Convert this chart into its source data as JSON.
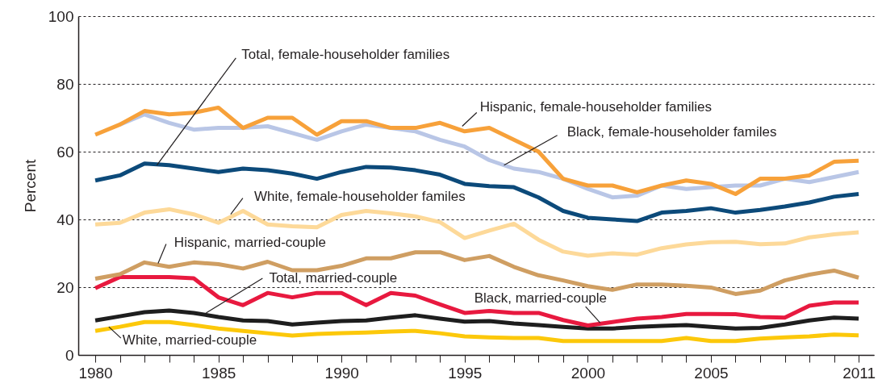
{
  "chart_data": {
    "type": "line",
    "ylabel": "Percent",
    "x": [
      1980,
      1981,
      1982,
      1983,
      1984,
      1985,
      1986,
      1987,
      1988,
      1989,
      1990,
      1991,
      1992,
      1993,
      1994,
      1995,
      1996,
      1997,
      1998,
      1999,
      2000,
      2001,
      2002,
      2003,
      2004,
      2005,
      2006,
      2007,
      2008,
      2009,
      2010,
      2011
    ],
    "xlim": [
      1979.31,
      2011.62
    ],
    "xticks": [
      1980,
      {
        "value": 1981,
        "label": null
      },
      {
        "value": 1982,
        "label": null
      },
      {
        "value": 1983,
        "label": null
      },
      {
        "value": 1984,
        "label": null
      },
      1985,
      {
        "value": 1986,
        "label": null
      },
      {
        "value": 1987,
        "label": null
      },
      {
        "value": 1988,
        "label": null
      },
      {
        "value": 1989,
        "label": null
      },
      1990,
      {
        "value": 1991,
        "label": null
      },
      {
        "value": 1992,
        "label": null
      },
      {
        "value": 1993,
        "label": null
      },
      {
        "value": 1994,
        "label": null
      },
      1995,
      {
        "value": 1996,
        "label": null
      },
      {
        "value": 1997,
        "label": null
      },
      {
        "value": 1998,
        "label": null
      },
      {
        "value": 1999,
        "label": null
      },
      2000,
      {
        "value": 2001,
        "label": null
      },
      {
        "value": 2002,
        "label": null
      },
      {
        "value": 2003,
        "label": null
      },
      {
        "value": 2004,
        "label": null
      },
      2005,
      {
        "value": 2006,
        "label": null
      },
      {
        "value": 2007,
        "label": null
      },
      {
        "value": 2008,
        "label": null
      },
      {
        "value": 2009,
        "label": null
      },
      {
        "value": 2010,
        "label": null
      },
      2011
    ],
    "ylim": [
      0,
      100
    ],
    "yticks": [
      0,
      20,
      40,
      60,
      80,
      100
    ],
    "grid": "y",
    "line_style": "solid",
    "series": [
      {
        "color": "#fcc80a",
        "values": [
          7.1,
          8.3,
          9.7,
          9.7,
          8.8,
          7.8,
          7.1,
          6.4,
          5.7,
          6.2,
          6.4,
          6.6,
          6.9,
          7.1,
          6.4,
          5.5,
          5.2,
          5,
          5,
          4.1,
          4.1,
          4.1,
          4.1,
          4.1,
          5,
          4.1,
          4.1,
          4.8,
          5.2,
          5.5,
          6,
          5.8
        ]
      },
      {
        "color": "#1e1e1e",
        "values": [
          10.2,
          11.4,
          12.6,
          13.1,
          12.4,
          11.2,
          10.2,
          10,
          9,
          9.5,
          10,
          10.2,
          11,
          11.7,
          10.7,
          9.8,
          10,
          9.3,
          8.8,
          8.3,
          7.8,
          7.8,
          8.3,
          8.6,
          8.8,
          8.3,
          7.8,
          8,
          9,
          10.2,
          11,
          10.7
        ]
      },
      {
        "color": "#e8193f",
        "values": [
          19.7,
          23,
          23,
          23,
          22.6,
          17,
          14.7,
          18.3,
          17,
          18.3,
          18.3,
          14.7,
          18.3,
          17.5,
          14.9,
          12.4,
          13,
          12.4,
          12.4,
          10.3,
          8.7,
          9.7,
          10.7,
          11.2,
          12.1,
          12.1,
          12,
          11.2,
          11,
          14.5,
          15.5,
          15.5
        ]
      },
      {
        "color": "#cf9e62",
        "values": [
          22.5,
          23.8,
          27.3,
          26,
          27.3,
          26.8,
          25.5,
          27.5,
          25,
          25,
          26.3,
          28.5,
          28.5,
          30.3,
          30.3,
          28,
          29.2,
          26,
          23.5,
          22,
          20.3,
          19.2,
          20.8,
          20.8,
          20.4,
          19.9,
          18,
          19,
          22,
          23.7,
          24.9,
          22.8
        ]
      },
      {
        "color": "#fdd999",
        "values": [
          38.5,
          39,
          42,
          43,
          41.5,
          39,
          42.5,
          38.5,
          38,
          37.7,
          41.3,
          42.5,
          41.8,
          40.9,
          39.2,
          34.5,
          36.7,
          38.7,
          34,
          30.5,
          29.3,
          30,
          29.6,
          31.5,
          32.6,
          33.3,
          33.4,
          32.7,
          32.9,
          34.7,
          35.6,
          36.2
        ]
      },
      {
        "color": "#0c4a7a",
        "values": [
          51.5,
          53,
          56.5,
          56,
          55,
          54,
          55,
          54.5,
          53.5,
          52,
          54,
          55.5,
          55.3,
          54.5,
          53.2,
          50.5,
          49.8,
          49.5,
          46.5,
          42.5,
          40.5,
          40,
          39.5,
          42,
          42.5,
          43.3,
          42,
          42.8,
          43.8,
          45,
          46.7,
          47.5
        ]
      },
      {
        "color": "#b9c6e6",
        "values": [
          null,
          68,
          71,
          68.5,
          66.5,
          67,
          67,
          67.5,
          65.5,
          63.5,
          66,
          68,
          67,
          66,
          63.5,
          61.5,
          57.5,
          55,
          54,
          52,
          49,
          46.5,
          47,
          50,
          49,
          49.5,
          50,
          50,
          52,
          51,
          52.5,
          54
        ]
      },
      {
        "color": "#f7a13a",
        "values": [
          65,
          68,
          72,
          71,
          71.5,
          73,
          67,
          70,
          70,
          65,
          69,
          69,
          67,
          67,
          68.5,
          66,
          67,
          63.5,
          60,
          52,
          50,
          50,
          48,
          50,
          51.5,
          50.5,
          47.5,
          52,
          52,
          53,
          57,
          57.3
        ]
      }
    ],
    "annotations": [
      {
        "text": "Total, female-householder families",
        "x": 1982.5,
        "y": 56
      },
      {
        "text": "Hispanic, female-householder families",
        "x": 1994.9,
        "y": 67.5
      },
      {
        "text": "Black, female-householder familes",
        "x": 1996.6,
        "y": 56
      },
      {
        "text": "White, female-householder familes",
        "x": 1985.5,
        "y": 41.5
      },
      {
        "text": "Hispanic, married-couple",
        "x": 1982.55,
        "y": 27
      },
      {
        "text": "Total, married-couple",
        "x": 1984.5,
        "y": 12.4
      },
      {
        "text": "Black, married-couple",
        "x": 2000.5,
        "y": 9.5
      },
      {
        "text": "White, married-couple",
        "x": 1980.55,
        "y": 8.3
      }
    ]
  }
}
